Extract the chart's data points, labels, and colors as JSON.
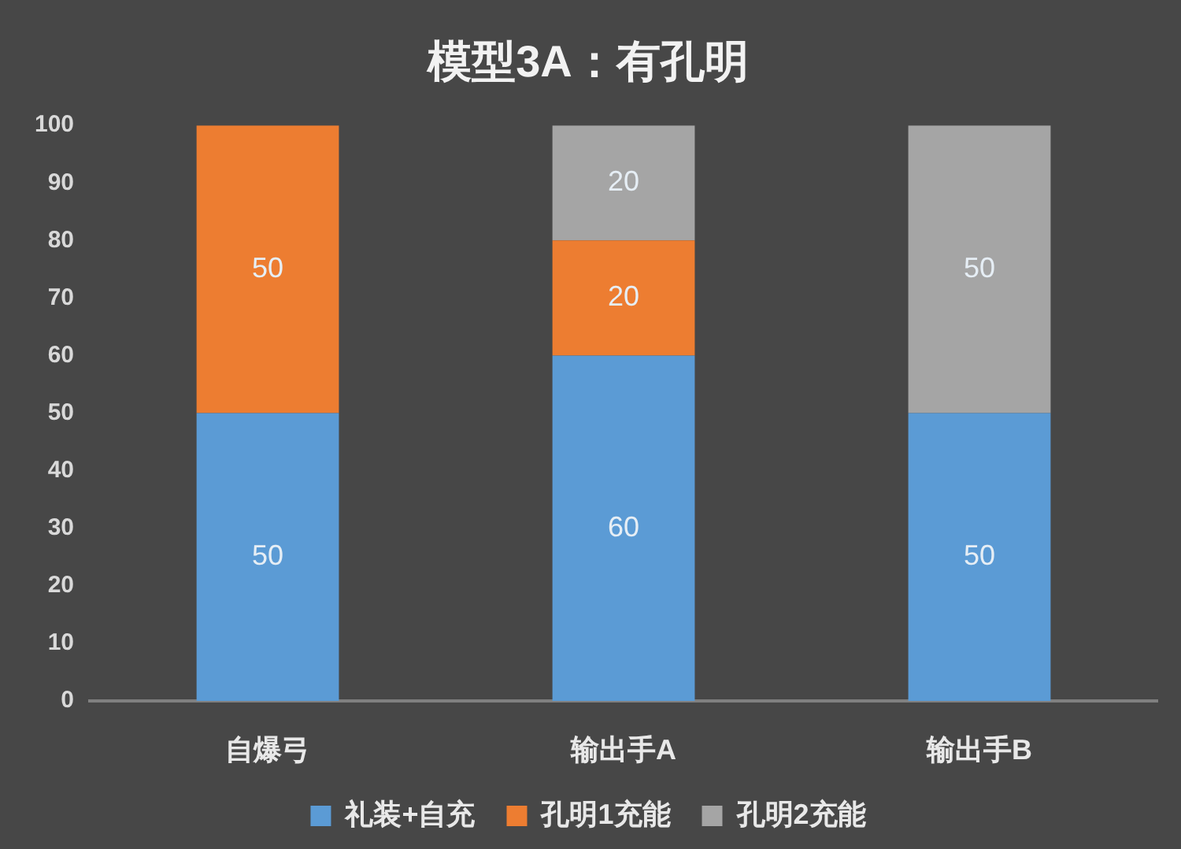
{
  "chart_data": {
    "type": "bar",
    "title": "模型3A：有孔明",
    "categories": [
      "自爆弓",
      "输出手A",
      "输出手B"
    ],
    "series": [
      {
        "name": "礼装+自充",
        "color": "#5b9bd5",
        "values": [
          50,
          60,
          50
        ]
      },
      {
        "name": "孔明1充能",
        "color": "#ed7d31",
        "values": [
          50,
          20,
          null
        ]
      },
      {
        "name": "孔明2充能",
        "color": "#a5a5a5",
        "values": [
          null,
          20,
          50
        ]
      }
    ],
    "stacked": true,
    "ylim": [
      0,
      100
    ],
    "yticks": [
      0,
      10,
      20,
      30,
      40,
      50,
      60,
      70,
      80,
      90,
      100
    ],
    "grid": false,
    "legend": "bottom",
    "data_labels": true
  }
}
